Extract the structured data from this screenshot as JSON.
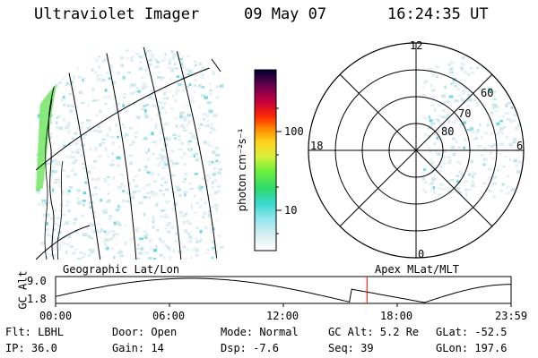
{
  "header": {
    "instrument": "Ultraviolet Imager",
    "date": "09 May 07",
    "time": "16:24:35 UT"
  },
  "colorbar": {
    "label": "photon cm⁻²s⁻¹",
    "ticks": [
      "100",
      "10"
    ]
  },
  "polar_plot": {
    "mlt_labels": {
      "top": "12",
      "left": "18",
      "right": "6",
      "bottom": "0"
    },
    "lat_labels": [
      "60",
      "70",
      "80"
    ]
  },
  "projection_labels": {
    "left": "Geographic Lat/Lon",
    "right": "Apex MLat/MLT"
  },
  "altitude_plot": {
    "ylabel": "GC Alt",
    "yticks": [
      "9.0",
      "1.8"
    ],
    "xticks": [
      "00:00",
      "06:00",
      "12:00",
      "18:00",
      "23:59"
    ],
    "current_time_fraction": 0.6836,
    "marker_color": "#ff0000"
  },
  "status": {
    "flt": "Flt: LBHL",
    "ip": "IP: 36.0",
    "door": "Door: Open",
    "gain": "Gain: 14",
    "mode": "Mode: Normal",
    "dsp": "Dsp:   -7.6",
    "gc_alt": "GC Alt: 5.2 Re",
    "seq": "Seq: 39",
    "glat": "GLat: -52.5",
    "glon": "GLon: 197.6"
  }
}
